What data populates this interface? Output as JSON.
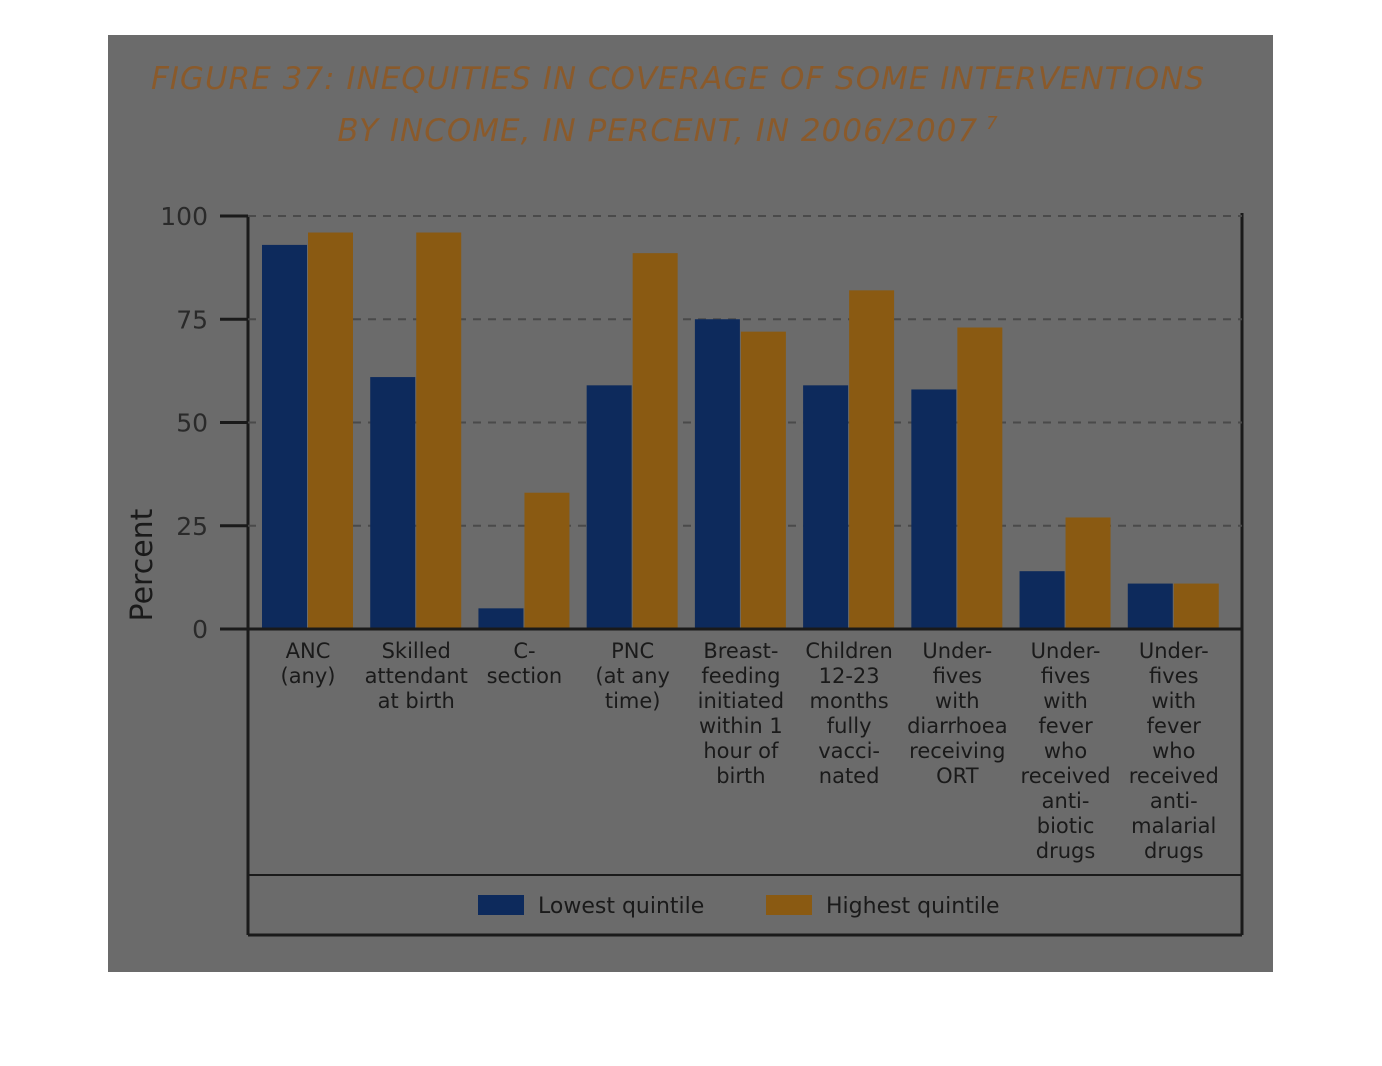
{
  "chart_data": {
    "type": "bar",
    "title": "FIGURE 37: INEQUITIES IN COVERAGE OF SOME INTERVENTIONS",
    "subtitle": "BY INCOME, IN PERCENT, IN 2006/2007",
    "title_footnote": "7",
    "ylabel": "Percent",
    "xlabel": "",
    "ylim": [
      0,
      100
    ],
    "yticks": [
      "0",
      "25",
      "50",
      "75",
      "100"
    ],
    "grid": true,
    "legend_position": "bottom",
    "categories": [
      [
        "ANC",
        "(any)"
      ],
      [
        "Skilled",
        "attendant",
        "at birth"
      ],
      [
        "C-",
        "section"
      ],
      [
        "PNC",
        "(at any",
        "time)"
      ],
      [
        "Breast-",
        "feeding",
        "initiated",
        "within 1",
        "hour of",
        "birth"
      ],
      [
        "Children",
        "12-23",
        "months",
        "fully",
        "vacci-",
        "nated"
      ],
      [
        "Under-",
        "fives",
        "with",
        "diarrhoea",
        "receiving",
        "ORT"
      ],
      [
        "Under-",
        "fives",
        "with",
        "fever",
        "who",
        "received",
        "anti-",
        "biotic",
        "drugs"
      ],
      [
        "Under-",
        "fives",
        "with",
        "fever",
        "who",
        "received",
        "anti-",
        "malarial",
        "drugs"
      ]
    ],
    "series": [
      {
        "name": "Lowest quintile",
        "color": "#0d2a5c",
        "values": [
          93,
          61,
          5,
          59,
          75,
          59,
          58,
          14,
          11
        ]
      },
      {
        "name": "Highest quintile",
        "color": "#8a5a12",
        "values": [
          96,
          96,
          33,
          91,
          72,
          82,
          73,
          27,
          11
        ]
      }
    ]
  }
}
